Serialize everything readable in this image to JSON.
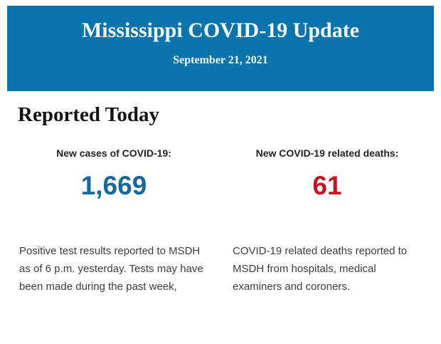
{
  "header": {
    "title": "Mississippi COVID-19 Update",
    "date": "September 21, 2021",
    "background_color": "#0b74ad",
    "text_color": "#f3fafd"
  },
  "main": {
    "heading": "Reported Today",
    "stats": [
      {
        "label": "New cases of COVID-19:",
        "value": "1,669",
        "value_color": "#17689d",
        "description": "Positive test results reported to MSDH as of 6 p.m. yesterday. Tests may have been made during the past week,"
      },
      {
        "label": "New COVID-19 related deaths:",
        "value": "61",
        "value_color": "#c41420",
        "description": "COVID-19 related deaths reported to MSDH from hospitals, medical examiners and coroners."
      }
    ]
  }
}
